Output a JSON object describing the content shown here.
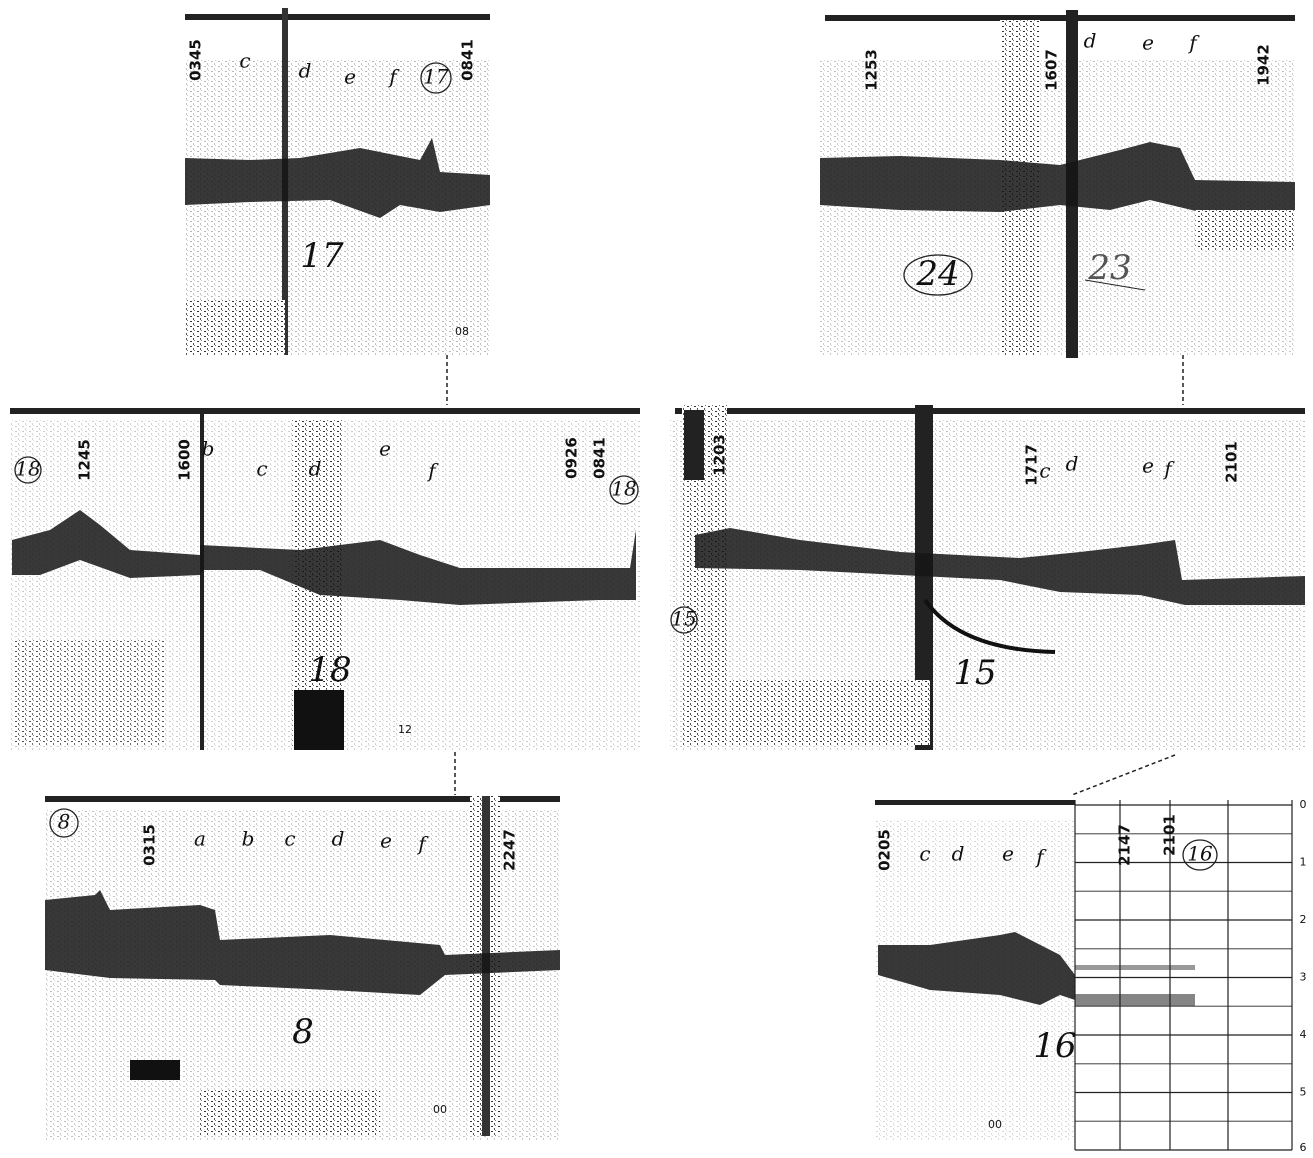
{
  "panels": [
    {
      "number": "17",
      "circled": "17",
      "times": [
        "0345",
        "0841"
      ],
      "letters": [
        "c",
        "d",
        "e",
        "f"
      ],
      "marks": [
        "08"
      ]
    },
    {
      "number": "24",
      "circled": "24",
      "times": [
        "1253",
        "1607",
        "1942"
      ],
      "letters": [
        "d",
        "e",
        "f"
      ],
      "marks": [
        "23"
      ]
    },
    {
      "number": "18",
      "circled": "18",
      "times": [
        "1245",
        "1600",
        "0926",
        "0841"
      ],
      "letters": [
        "b",
        "c",
        "d",
        "e",
        "f"
      ],
      "marks": [
        "12"
      ]
    },
    {
      "number": "15",
      "circled": "15",
      "times": [
        "1203",
        "1717",
        "2101"
      ],
      "letters": [
        "c",
        "d",
        "e",
        "f"
      ],
      "marks": []
    },
    {
      "number": "8",
      "circled": "8",
      "times": [
        "0315",
        "2247"
      ],
      "letters": [
        "a",
        "b",
        "c",
        "d",
        "e",
        "f"
      ],
      "marks": [
        "00"
      ]
    },
    {
      "number": "16",
      "circled": "16",
      "times": [
        "0205",
        "2147",
        "2101"
      ],
      "letters": [
        "c",
        "d",
        "e",
        "f"
      ],
      "marks": [
        "00"
      ]
    }
  ],
  "depth_scale": [
    "0",
    "1",
    "2",
    "3",
    "4",
    "5",
    "6"
  ]
}
